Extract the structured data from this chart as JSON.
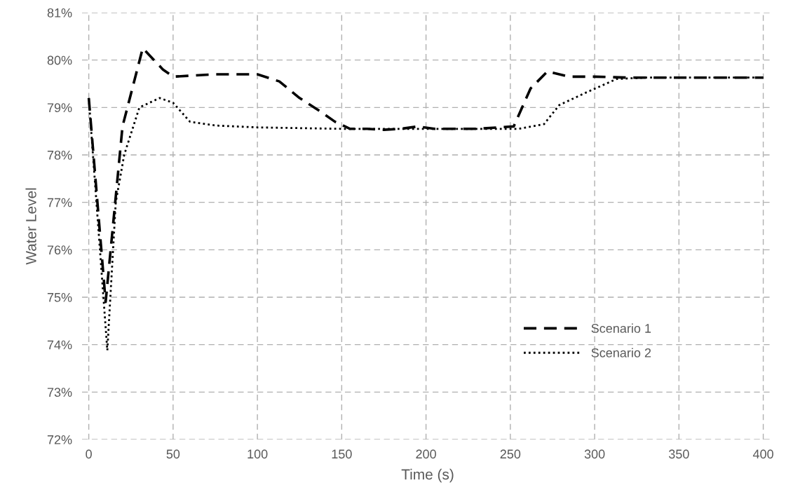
{
  "chart_data": {
    "type": "line",
    "xlabel": "Time (s)",
    "ylabel": "Water Level",
    "xlim": [
      -4,
      406
    ],
    "xticks": [
      0,
      50,
      100,
      150,
      200,
      250,
      300,
      350,
      400
    ],
    "ylim": [
      72,
      81
    ],
    "yticks": [
      {
        "value": 72,
        "label": "72%"
      },
      {
        "value": 73,
        "label": "73%"
      },
      {
        "value": 74,
        "label": "74%"
      },
      {
        "value": 75,
        "label": "75%"
      },
      {
        "value": 76,
        "label": "76%"
      },
      {
        "value": 77,
        "label": "77%"
      },
      {
        "value": 78,
        "label": "78%"
      },
      {
        "value": 79,
        "label": "79%"
      },
      {
        "value": 80,
        "label": "80%"
      },
      {
        "value": 81,
        "label": "81%"
      }
    ],
    "grid": true,
    "legend": "bottom right",
    "marker": "none",
    "series": [
      {
        "name": "Scenario 1",
        "color": "#000000",
        "line_style": "dashed",
        "x": [
          0,
          10,
          20,
          32,
          44,
          50,
          75,
          100,
          113,
          125,
          138,
          146,
          155,
          165,
          175,
          185,
          195,
          205,
          230,
          252,
          257,
          262,
          272,
          285,
          300,
          320,
          350,
          400
        ],
        "values": [
          79.2,
          74.9,
          78.6,
          80.25,
          79.8,
          79.65,
          79.7,
          79.7,
          79.55,
          79.2,
          78.9,
          78.7,
          78.55,
          78.55,
          78.53,
          78.55,
          78.6,
          78.55,
          78.55,
          78.6,
          79.0,
          79.4,
          79.76,
          79.65,
          79.65,
          79.63,
          79.63,
          79.63
        ]
      },
      {
        "name": "Scenario 2",
        "color": "#000000",
        "line_style": "dotted",
        "x": [
          0,
          11,
          16,
          21,
          30,
          42,
          50,
          60,
          75,
          100,
          150,
          200,
          255,
          270,
          279,
          294,
          313,
          330,
          360,
          400
        ],
        "values": [
          79.2,
          73.88,
          77.0,
          78.0,
          79.0,
          79.2,
          79.1,
          78.7,
          78.62,
          78.58,
          78.55,
          78.55,
          78.55,
          78.65,
          79.05,
          79.3,
          79.6,
          79.63,
          79.63,
          79.63
        ]
      }
    ]
  }
}
